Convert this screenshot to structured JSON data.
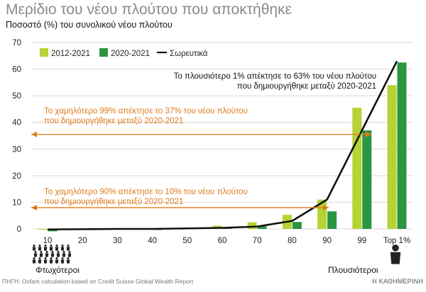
{
  "title": "Μερίδιο του νέου πλούτου που αποκτήθηκε",
  "subtitle": "Ποσοστό (%) του συνολικού νέου πλούτου",
  "poor_label": "Φτωχότεροι",
  "rich_label": "Πλουσιότεροι",
  "source": "ΠΗΓΗ: Oxfam calculation based on Credit Suisse Global Wealth Report",
  "publisher": "Η ΚΑΘΗΜΕΡΙΝΗ",
  "colors": {
    "series_2012_2021": "#b5d334",
    "series_2020_2021": "#2a9640",
    "cumulative_line": "#111111",
    "annotation_orange": "#e07b1a",
    "grid": "#d9d9d9",
    "people_icon": "#222222"
  },
  "chart_data": {
    "type": "bar",
    "categories": [
      "10",
      "20",
      "30",
      "40",
      "50",
      "60",
      "70",
      "80",
      "90",
      "99",
      "Top 1%"
    ],
    "ylim": [
      0,
      70
    ],
    "yticks": [
      0,
      10,
      20,
      30,
      40,
      50,
      60,
      70
    ],
    "grid": true,
    "legend_placement": "top-left",
    "series": [
      {
        "name": "2012-2021",
        "kind": "bar",
        "values": [
          -0.3,
          0.1,
          0.1,
          0.2,
          0.4,
          1.2,
          2.5,
          5.3,
          11.0,
          45.5,
          54.0
        ]
      },
      {
        "name": "2020-2021",
        "kind": "bar",
        "values": [
          -0.9,
          -0.2,
          0.1,
          -0.4,
          0.2,
          0.3,
          1.0,
          2.6,
          6.6,
          37.0,
          62.5
        ]
      },
      {
        "name": "Σωρευτικά",
        "kind": "line",
        "values": [
          -0.2,
          -0.1,
          0.0,
          0.0,
          0.2,
          0.4,
          0.9,
          3.0,
          11.0,
          37.0,
          63.0
        ]
      }
    ],
    "annotations": [
      {
        "text": [
          "Το πλουσιότερο 1% απέκτησε το 63% του νέου πλούτου",
          "που δημιουργήθηκε μεταξύ 2020-2021"
        ],
        "color": "#111111"
      },
      {
        "text": [
          "Το χαμηλότερο 99% απέκτησε το 37% του νέου πλούτου",
          "που δημιουργήθηκε μεταξύ 2020-2021"
        ],
        "color": "#e07b1a",
        "arrow_y": 35.5
      },
      {
        "text": [
          "Το χαμηλότερο 90% απέκτησε το 10% του νέου πλούτου",
          "που δημιουργήθηκε μεταξύ 2020-2021"
        ],
        "color": "#e07b1a",
        "arrow_y": 8
      }
    ]
  }
}
